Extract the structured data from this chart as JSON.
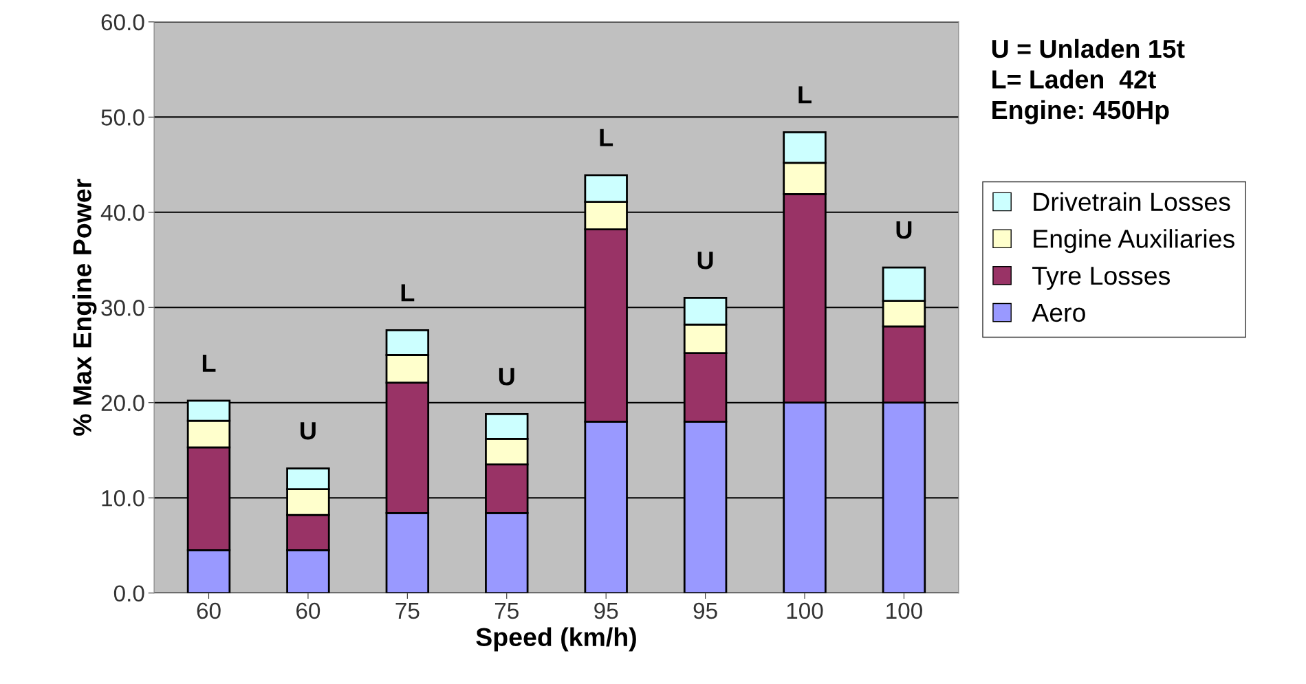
{
  "chart_data": {
    "type": "bar",
    "stacked": true,
    "xlabel": "Speed (km/h)",
    "ylabel": "% Max Engine Power",
    "categories": [
      "60",
      "60",
      "75",
      "75",
      "95",
      "95",
      "100",
      "100"
    ],
    "series": [
      {
        "name": "Aero",
        "color": "#9999ff",
        "values": [
          4.5,
          4.5,
          8.4,
          8.4,
          18.0,
          18.0,
          20.0,
          20.0
        ]
      },
      {
        "name": "Tyre Losses",
        "color": "#993366",
        "values": [
          10.8,
          3.7,
          13.7,
          5.1,
          20.2,
          7.2,
          21.9,
          8.0
        ]
      },
      {
        "name": "Engine Auxiliaries",
        "color": "#ffffcc",
        "values": [
          2.8,
          2.7,
          2.9,
          2.7,
          2.9,
          3.0,
          3.3,
          2.7
        ]
      },
      {
        "name": "Drivetrain Losses",
        "color": "#ccffff",
        "values": [
          2.1,
          2.2,
          2.6,
          2.6,
          2.8,
          2.8,
          3.2,
          3.5
        ]
      }
    ],
    "ylim": [
      0,
      60
    ],
    "yticks": [
      {
        "value": 0,
        "label": "0.0"
      },
      {
        "value": 10,
        "label": "10.0"
      },
      {
        "value": 20,
        "label": "20.0"
      },
      {
        "value": 30,
        "label": "30.0"
      },
      {
        "value": 40,
        "label": "40.0"
      },
      {
        "value": 50,
        "label": "50.0"
      },
      {
        "value": 60,
        "label": "60.0"
      }
    ],
    "grid": "y",
    "legend": "right",
    "totals": [
      "L",
      "U",
      "L",
      "U",
      "L",
      "U",
      "L",
      "U"
    ],
    "annotations": [
      "U = Unladen 15t\nL= Laden  42t\nEngine: 450Hp"
    ]
  }
}
